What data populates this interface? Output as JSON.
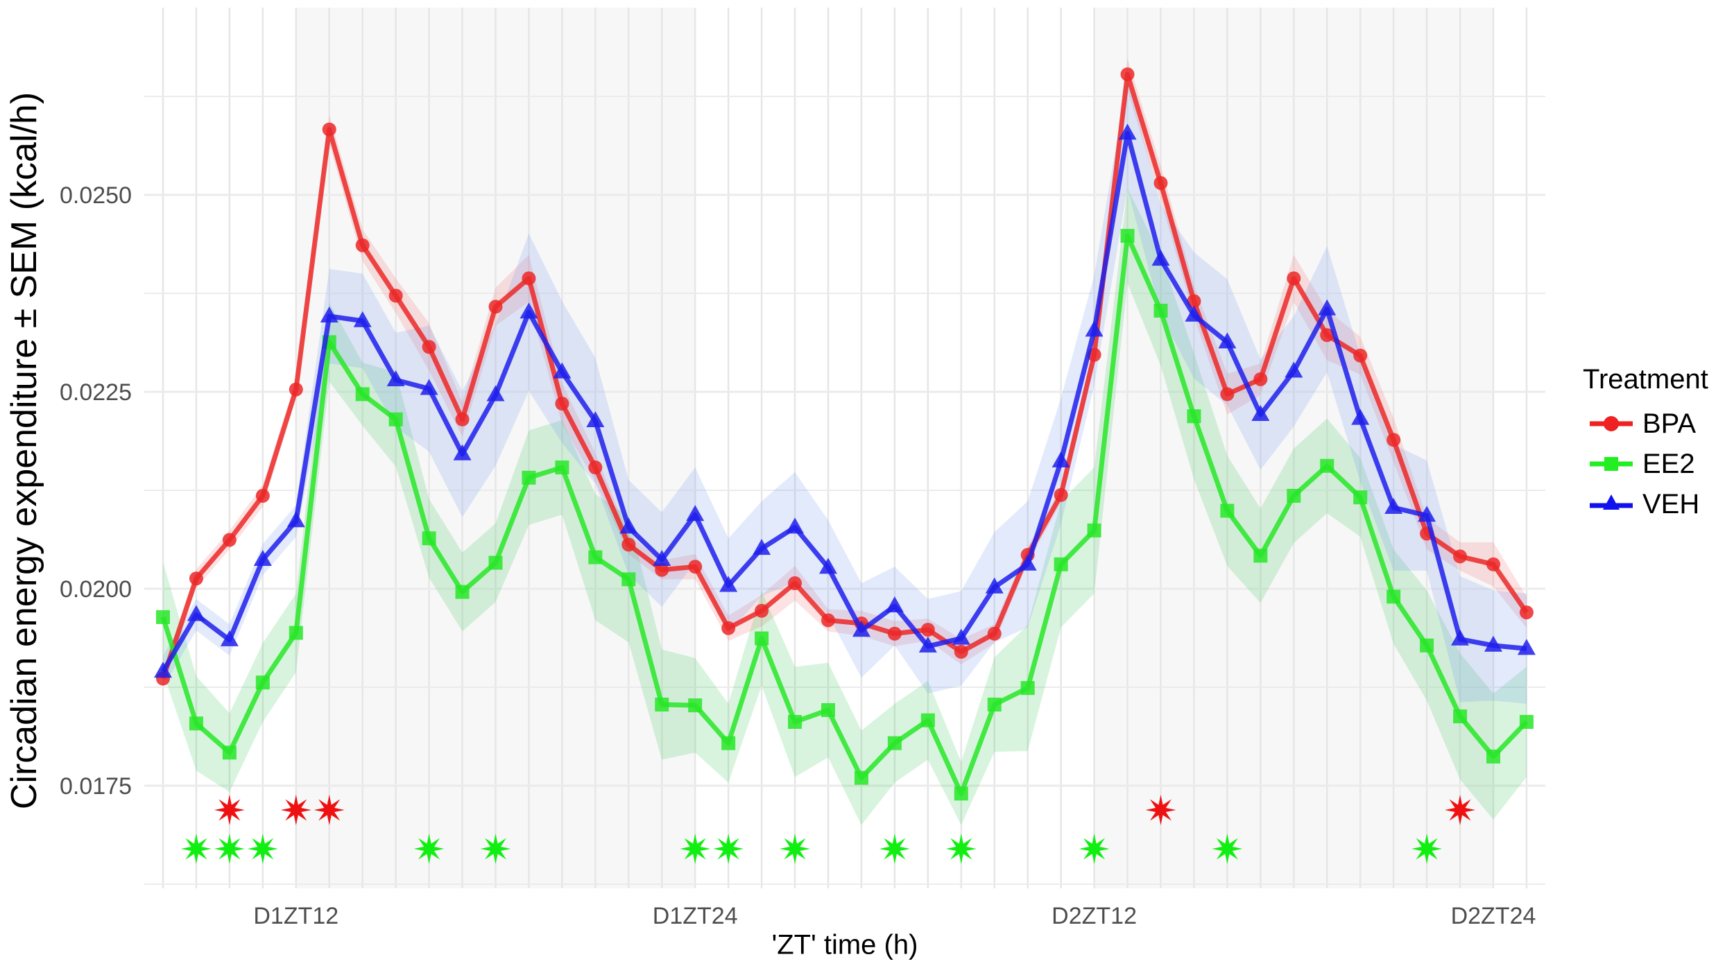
{
  "chart_data": {
    "type": "line",
    "title": "",
    "xlabel": "'ZT' time (h)",
    "ylabel": "Circadian energy expenditure ± SEM (kcal/h)",
    "ylim": [
      0.0163,
      0.0273
    ],
    "y_ticks": [
      0.0175,
      0.02,
      0.0225,
      0.025
    ],
    "y_tick_labels": [
      "0.0175",
      "0.0200",
      "0.0225",
      "0.0250"
    ],
    "x_tick_labels": [
      {
        "index": 4,
        "label": "D1ZT12"
      },
      {
        "index": 16,
        "label": "D1ZT24"
      },
      {
        "index": 28,
        "label": "D2ZT12"
      },
      {
        "index": 40,
        "label": "D2ZT24"
      }
    ],
    "x": [
      "D1ZT8",
      "D1ZT9",
      "D1ZT10",
      "D1ZT11",
      "D1ZT12",
      "D1ZT13",
      "D1ZT14",
      "D1ZT15",
      "D1ZT16",
      "D1ZT17",
      "D1ZT18",
      "D1ZT19",
      "D1ZT20",
      "D1ZT21",
      "D1ZT22",
      "D1ZT23",
      "D1ZT24",
      "D2ZT1",
      "D2ZT2",
      "D2ZT3",
      "D2ZT4",
      "D2ZT5",
      "D2ZT6",
      "D2ZT7",
      "D2ZT8",
      "D2ZT9",
      "D2ZT10",
      "D2ZT11",
      "D2ZT12",
      "D2ZT13",
      "D2ZT14",
      "D2ZT15",
      "D2ZT16",
      "D2ZT17",
      "D2ZT18",
      "D2ZT19",
      "D2ZT20",
      "D2ZT21",
      "D2ZT22",
      "D2ZT23",
      "D2ZT24",
      "D3ZT1"
    ],
    "dark_phase_shading": [
      [
        4,
        16
      ],
      [
        28,
        40
      ]
    ],
    "grid": true,
    "legend_title": "Treatment",
    "legend_position": "right",
    "series": [
      {
        "name": "BPA",
        "color": "#ee2222",
        "marker": "circle",
        "values": [
          0.01886,
          0.02013,
          0.02062,
          0.02118,
          0.02253,
          0.02583,
          0.02436,
          0.02372,
          0.02307,
          0.02215,
          0.02358,
          0.02394,
          0.02235,
          0.02154,
          0.02056,
          0.02024,
          0.02028,
          0.0195,
          0.01972,
          0.02007,
          0.0196,
          0.01956,
          0.01943,
          0.01948,
          0.0192,
          0.01943,
          0.02043,
          0.02119,
          0.02297,
          0.02653,
          0.02515,
          0.02365,
          0.02247,
          0.02266,
          0.02394,
          0.02322,
          0.02296,
          0.02189,
          0.0207,
          0.02041,
          0.02031,
          0.0197
        ],
        "sem": [
          0.0001,
          0.00012,
          0.00012,
          0.00014,
          0.00012,
          0.00018,
          0.0002,
          0.00022,
          0.0003,
          0.00022,
          0.00024,
          0.0003,
          0.00026,
          0.00018,
          0.00012,
          0.00012,
          0.00016,
          0.00016,
          0.0002,
          0.00022,
          0.00014,
          0.00016,
          0.00016,
          0.00014,
          0.00016,
          0.00012,
          0.0001,
          0.0001,
          0.0001,
          0.0002,
          0.00022,
          0.0002,
          0.00026,
          0.0002,
          0.0003,
          0.00032,
          0.00024,
          0.00028,
          0.0002,
          0.00018,
          0.00028,
          0.0002
        ]
      },
      {
        "name": "EE2",
        "color": "#22ee22",
        "marker": "square",
        "values": [
          0.01964,
          0.01829,
          0.01792,
          0.01881,
          0.01944,
          0.02313,
          0.02247,
          0.02215,
          0.02064,
          0.01996,
          0.02033,
          0.02141,
          0.02154,
          0.0204,
          0.02012,
          0.01853,
          0.01852,
          0.01804,
          0.01937,
          0.01831,
          0.01846,
          0.0176,
          0.01804,
          0.01833,
          0.0174,
          0.01853,
          0.01874,
          0.02031,
          0.02074,
          0.02448,
          0.02353,
          0.02219,
          0.02099,
          0.02042,
          0.02118,
          0.02156,
          0.02116,
          0.0199,
          0.01928,
          0.01838,
          0.01787,
          0.01831
        ],
        "sem": [
          0.0007,
          0.0006,
          0.0005,
          0.0005,
          0.0005,
          0.0005,
          0.0004,
          0.0006,
          0.0005,
          0.0005,
          0.0005,
          0.0006,
          0.0006,
          0.0008,
          0.0008,
          0.0007,
          0.0006,
          0.0005,
          0.0006,
          0.0007,
          0.0006,
          0.0006,
          0.0005,
          0.0005,
          0.0004,
          0.0006,
          0.0008,
          0.0008,
          0.0008,
          0.0006,
          0.0007,
          0.0008,
          0.0007,
          0.0006,
          0.0006,
          0.0006,
          0.0005,
          0.0006,
          0.0007,
          0.0008,
          0.0008,
          0.0007
        ]
      },
      {
        "name": "VEH",
        "color": "#1111ee",
        "marker": "triangle",
        "values": [
          0.01895,
          0.01967,
          0.01935,
          0.02037,
          0.02086,
          0.02346,
          0.0234,
          0.02265,
          0.02254,
          0.02171,
          0.02246,
          0.02351,
          0.02275,
          0.02213,
          0.02078,
          0.02037,
          0.02094,
          0.02004,
          0.02051,
          0.02078,
          0.02027,
          0.01947,
          0.01978,
          0.01927,
          0.01937,
          0.02002,
          0.02031,
          0.02162,
          0.02328,
          0.02578,
          0.02418,
          0.02347,
          0.02313,
          0.02221,
          0.02276,
          0.02355,
          0.02216,
          0.02103,
          0.02093,
          0.01936,
          0.01928,
          0.01924
        ],
        "sem": [
          0.0002,
          0.0002,
          0.0002,
          0.0002,
          0.0002,
          0.0006,
          0.0006,
          0.0006,
          0.0008,
          0.0008,
          0.0009,
          0.001,
          0.0009,
          0.0008,
          0.0006,
          0.0006,
          0.0006,
          0.0006,
          0.0006,
          0.0007,
          0.0006,
          0.0006,
          0.0005,
          0.0006,
          0.0006,
          0.0007,
          0.0008,
          0.0008,
          0.0007,
          0.0007,
          0.0007,
          0.0008,
          0.0008,
          0.0007,
          0.0007,
          0.0008,
          0.0008,
          0.0008,
          0.0007,
          0.0008,
          0.0007,
          0.0007
        ]
      }
    ],
    "significance_markers": [
      {
        "series": "BPA",
        "color": "#ee1111",
        "row": "upper",
        "indices": [
          2,
          4,
          5,
          30,
          39
        ]
      },
      {
        "series": "EE2",
        "color": "#11ee11",
        "row": "lower",
        "indices": [
          1,
          2,
          3,
          8,
          10,
          16,
          17,
          19,
          22,
          24,
          28,
          32,
          38
        ]
      }
    ]
  },
  "axes": {
    "xlabel": "'ZT' time (h)",
    "ylabel": "Circadian energy expenditure ± SEM (kcal/h)"
  },
  "legend": {
    "title": "Treatment",
    "items": [
      {
        "label": "BPA",
        "color": "#ee2222",
        "marker": "circle"
      },
      {
        "label": "EE2",
        "color": "#22ee22",
        "marker": "square"
      },
      {
        "label": "VEH",
        "color": "#1111ee",
        "marker": "triangle"
      }
    ]
  }
}
